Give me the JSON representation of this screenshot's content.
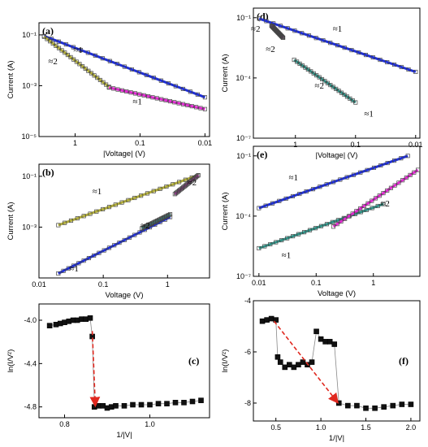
{
  "colors": {
    "blue": "#1f2fd6",
    "olive": "#b0ac3a",
    "magenta": "#e02ad0",
    "teal": "#2f8f84",
    "marker": "#333333",
    "red": "#e0281f"
  },
  "chart_data": [
    {
      "id": "a",
      "type": "scatter",
      "panel_label": "(a)",
      "xlabel": "|Voltage| (V)",
      "ylabel": "Current (A)",
      "xscale": "log",
      "yscale": "log",
      "xreversed": true,
      "xlim": [
        3.6,
        0.0085
      ],
      "ylim": [
        1e-05,
        0.3
      ],
      "xticks": [
        {
          "v": 1,
          "label": "1"
        },
        {
          "v": 0.1,
          "label": "0.1"
        },
        {
          "v": 0.01,
          "label": "0.01"
        }
      ],
      "yticks": [
        {
          "v": 0.1,
          "label": "10⁻¹"
        },
        {
          "v": 0.001,
          "label": "10⁻³"
        },
        {
          "v": 1e-05,
          "label": "10⁻⁵"
        }
      ],
      "series": [
        {
          "color": "blue",
          "points": [
            [
              3.0,
              0.09
            ],
            [
              0.01,
              0.00035
            ]
          ]
        },
        {
          "color": "olive",
          "points": [
            [
              3.0,
              0.085
            ],
            [
              0.3,
              0.0009
            ]
          ]
        },
        {
          "color": "magenta",
          "points": [
            [
              0.3,
              0.00085
            ],
            [
              0.01,
              0.00012
            ]
          ]
        }
      ],
      "annotations": [
        {
          "text": "≈1",
          "x": 0.9,
          "y": 0.02
        },
        {
          "text": "≈2",
          "x": 2.2,
          "y": 0.007
        },
        {
          "text": "≈1",
          "x": 0.11,
          "y": 0.00018
        }
      ]
    },
    {
      "id": "b",
      "type": "scatter",
      "panel_label": "(b)",
      "xlabel": "Voltage (V)",
      "ylabel": "Current (A)",
      "xscale": "log",
      "yscale": "log",
      "xreversed": false,
      "xlim": [
        0.01,
        4.5
      ],
      "ylim": [
        1e-05,
        0.3
      ],
      "xticks": [
        {
          "v": 0.01,
          "label": "0.01"
        },
        {
          "v": 0.1,
          "label": "0.1"
        },
        {
          "v": 1,
          "label": "1"
        }
      ],
      "yticks": [
        {
          "v": 0.1,
          "label": "10⁻¹"
        },
        {
          "v": 0.001,
          "label": "10⁻³"
        }
      ],
      "series": [
        {
          "color": "olive",
          "points": [
            [
              0.02,
              0.0012
            ],
            [
              3.0,
              0.11
            ]
          ]
        },
        {
          "color": "blue",
          "points": [
            [
              0.02,
              1.5e-05
            ],
            [
              1.1,
              0.0025
            ]
          ]
        },
        {
          "color": "teal",
          "points": [
            [
              0.4,
              0.0009
            ],
            [
              1.1,
              0.0032
            ]
          ]
        },
        {
          "color": "magenta",
          "points": [
            [
              1.3,
              0.02
            ],
            [
              3.0,
              0.11
            ]
          ]
        }
      ],
      "annotations": [
        {
          "text": "≈1",
          "x": 0.08,
          "y": 0.02
        },
        {
          "text": "≈2",
          "x": 0.45,
          "y": 0.0009
        },
        {
          "text": "≈2",
          "x": 2.4,
          "y": 0.045
        },
        {
          "text": "≈1",
          "x": 0.035,
          "y": 1.8e-05
        }
      ]
    },
    {
      "id": "c",
      "type": "scatter",
      "panel_label": "(c)",
      "xlabel": "1/|V|",
      "ylabel": "ln(I/V²)",
      "xscale": "linear",
      "yscale": "linear",
      "xlim": [
        0.74,
        1.14
      ],
      "ylim": [
        -4.9,
        -3.85
      ],
      "xticks": [
        {
          "v": 0.8,
          "label": "0.8"
        },
        {
          "v": 1.0,
          "label": "1.0"
        }
      ],
      "yticks": [
        {
          "v": -4.0,
          "label": "-4.0"
        },
        {
          "v": -4.4,
          "label": "-4.4"
        },
        {
          "v": -4.8,
          "label": "-4.8"
        }
      ],
      "series": [
        {
          "color": "marker",
          "points": [
            [
              0.765,
              -4.05
            ],
            [
              0.78,
              -4.04
            ],
            [
              0.79,
              -4.03
            ],
            [
              0.8,
              -4.02
            ],
            [
              0.81,
              -4.01
            ],
            [
              0.82,
              -4.0
            ],
            [
              0.83,
              -4.0
            ],
            [
              0.84,
              -3.99
            ],
            [
              0.85,
              -3.99
            ],
            [
              0.86,
              -3.98
            ],
            [
              0.865,
              -4.15
            ],
            [
              0.87,
              -4.8
            ],
            [
              0.88,
              -4.79
            ],
            [
              0.89,
              -4.79
            ],
            [
              0.9,
              -4.81
            ],
            [
              0.91,
              -4.8
            ],
            [
              0.92,
              -4.79
            ],
            [
              0.94,
              -4.79
            ],
            [
              0.96,
              -4.78
            ],
            [
              0.98,
              -4.78
            ],
            [
              1.0,
              -4.78
            ],
            [
              1.02,
              -4.77
            ],
            [
              1.04,
              -4.77
            ],
            [
              1.06,
              -4.76
            ],
            [
              1.08,
              -4.76
            ],
            [
              1.1,
              -4.75
            ],
            [
              1.12,
              -4.74
            ]
          ]
        }
      ],
      "arrow": {
        "from": [
          0.865,
          -4.1
        ],
        "to": [
          0.872,
          -4.78
        ]
      }
    },
    {
      "id": "d",
      "type": "scatter",
      "panel_label": "(d)",
      "xlabel": "|Voltage| (V)",
      "ylabel": "Current (A)",
      "xscale": "log",
      "yscale": "log",
      "xreversed": true,
      "xlim": [
        5.0,
        0.0085
      ],
      "ylim": [
        1e-07,
        0.3
      ],
      "xticks": [
        {
          "v": 1,
          "label": "1"
        },
        {
          "v": 0.1,
          "label": "0.1"
        },
        {
          "v": 0.01,
          "label": "0.01"
        }
      ],
      "yticks": [
        {
          "v": 0.1,
          "label": "10⁻¹"
        },
        {
          "v": 0.0001,
          "label": "10⁻⁴"
        },
        {
          "v": 1e-07,
          "label": "10⁻⁷"
        }
      ],
      "series": [
        {
          "color": "blue",
          "points": [
            [
              4.0,
              0.09
            ],
            [
              0.01,
              0.0002
            ]
          ]
        },
        {
          "color": "teal",
          "points": [
            [
              1.05,
              0.0008
            ],
            [
              0.1,
              6e-06
            ]
          ]
        },
        {
          "color": "magenta",
          "points": [
            [
              2.5,
              0.04
            ],
            [
              1.6,
              0.01
            ]
          ]
        }
      ],
      "annotations": [
        {
          "text": "≈1",
          "x": 0.2,
          "y": 0.02
        },
        {
          "text": "≈2",
          "x": 4.6,
          "y": 0.02
        },
        {
          "text": "≈2",
          "x": 2.6,
          "y": 0.002
        },
        {
          "text": "≈2",
          "x": 0.4,
          "y": 3e-05
        },
        {
          "text": "≈1",
          "x": 0.06,
          "y": 1.2e-06
        }
      ]
    },
    {
      "id": "e",
      "type": "scatter",
      "panel_label": "(e)",
      "xlabel": "Voltage (V)",
      "ylabel": "Current (A)",
      "xscale": "log",
      "yscale": "log",
      "xreversed": false,
      "xlim": [
        0.008,
        6.5
      ],
      "ylim": [
        1e-07,
        0.3
      ],
      "xticks": [
        {
          "v": 0.01,
          "label": "0.01"
        },
        {
          "v": 0.1,
          "label": "0.1"
        },
        {
          "v": 1,
          "label": "1"
        }
      ],
      "yticks": [
        {
          "v": 0.1,
          "label": "10⁻¹"
        },
        {
          "v": 0.0001,
          "label": "10⁻⁴"
        },
        {
          "v": 1e-07,
          "label": "10⁻⁷"
        }
      ],
      "series": [
        {
          "color": "blue",
          "points": [
            [
              0.01,
              0.00025
            ],
            [
              4.0,
              0.1
            ]
          ]
        },
        {
          "color": "teal",
          "points": [
            [
              0.01,
              2.5e-06
            ],
            [
              1.5,
              0.0004
            ]
          ]
        },
        {
          "color": "magenta",
          "points": [
            [
              0.2,
              3e-05
            ],
            [
              6.0,
              0.02
            ]
          ]
        }
      ],
      "annotations": [
        {
          "text": "≈1",
          "x": 0.04,
          "y": 0.006
        },
        {
          "text": "≈2",
          "x": 1.6,
          "y": 0.0003
        },
        {
          "text": "≈1",
          "x": 0.03,
          "y": 8e-07
        }
      ]
    },
    {
      "id": "f",
      "type": "scatter",
      "panel_label": "(f)",
      "xlabel": "1/|V|",
      "ylabel": "ln(I/V²)",
      "xscale": "linear",
      "yscale": "linear",
      "xlim": [
        0.25,
        2.1
      ],
      "ylim": [
        -8.7,
        -4.0
      ],
      "xticks": [
        {
          "v": 0.5,
          "label": "0.5"
        },
        {
          "v": 1.0,
          "label": "1.0"
        },
        {
          "v": 1.5,
          "label": "1.5"
        },
        {
          "v": 2.0,
          "label": "2.0"
        }
      ],
      "yticks": [
        {
          "v": -4,
          "label": "-4"
        },
        {
          "v": -6,
          "label": "-6"
        },
        {
          "v": -8,
          "label": "-8"
        }
      ],
      "series": [
        {
          "color": "marker",
          "points": [
            [
              0.35,
              -4.8
            ],
            [
              0.4,
              -4.75
            ],
            [
              0.45,
              -4.7
            ],
            [
              0.5,
              -4.75
            ],
            [
              0.52,
              -6.2
            ],
            [
              0.55,
              -6.4
            ],
            [
              0.6,
              -6.6
            ],
            [
              0.65,
              -6.5
            ],
            [
              0.7,
              -6.6
            ],
            [
              0.75,
              -6.5
            ],
            [
              0.8,
              -6.4
            ],
            [
              0.85,
              -6.5
            ],
            [
              0.9,
              -6.4
            ],
            [
              0.95,
              -5.2
            ],
            [
              1.0,
              -5.5
            ],
            [
              1.05,
              -5.6
            ],
            [
              1.1,
              -5.6
            ],
            [
              1.15,
              -5.7
            ],
            [
              1.2,
              -8.0
            ],
            [
              1.3,
              -8.1
            ],
            [
              1.4,
              -8.1
            ],
            [
              1.5,
              -8.2
            ],
            [
              1.6,
              -8.2
            ],
            [
              1.7,
              -8.15
            ],
            [
              1.8,
              -8.1
            ],
            [
              1.9,
              -8.05
            ],
            [
              2.0,
              -8.05
            ]
          ]
        }
      ],
      "arrow": {
        "from": [
          0.48,
          -4.8
        ],
        "to": [
          1.18,
          -7.95
        ]
      }
    }
  ]
}
